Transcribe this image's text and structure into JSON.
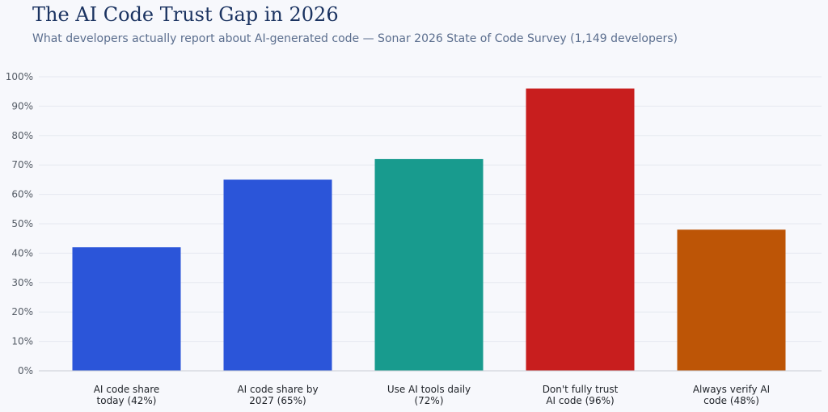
{
  "header": {
    "title": "The AI Code Trust Gap in 2026",
    "subtitle": "What developers actually report about AI-generated code — Sonar 2026 State of Code Survey (1,149 developers)"
  },
  "chart_data": {
    "type": "bar",
    "title": "The AI Code Trust Gap in 2026",
    "subtitle": "What developers actually report about AI-generated code — Sonar 2026 State of Code Survey (1,149 developers)",
    "xlabel": "",
    "ylabel": "",
    "categories": [
      [
        "AI code share",
        "today (42%)"
      ],
      [
        "AI code share by",
        "2027 (65%)"
      ],
      [
        "Use AI tools daily",
        "(72%)"
      ],
      [
        "Don't fully trust",
        "AI code (96%)"
      ],
      [
        "Always verify AI",
        "code (48%)"
      ]
    ],
    "values": [
      42,
      65,
      72,
      96,
      48
    ],
    "colors": [
      "#2b55d9",
      "#2b55d9",
      "#189b8e",
      "#c81e1e",
      "#bd5506"
    ],
    "ylim": [
      0,
      100
    ],
    "yticks": [
      0,
      10,
      20,
      30,
      40,
      50,
      60,
      70,
      80,
      90,
      100
    ],
    "ytick_format": "{v}%",
    "grid": true,
    "legend": "none"
  }
}
